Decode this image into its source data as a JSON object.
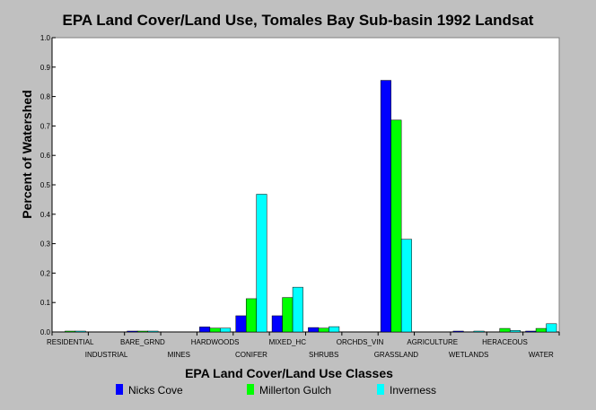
{
  "chart_data": {
    "type": "bar",
    "title": "EPA Land Cover/Land Use, Tomales Bay Sub-basin 1992 Landsat",
    "xlabel": "EPA Land Cover/Land Use Classes",
    "ylabel": "Percent of Watershed",
    "ylim": [
      0,
      1.0
    ],
    "yticks": [
      "0.0",
      "0.1",
      "0.2",
      "0.3",
      "0.4",
      "0.5",
      "0.6",
      "0.7",
      "0.8",
      "0.9",
      "1.0"
    ],
    "grid": false,
    "legend_position": "bottom",
    "categories": [
      "RESIDENTIAL",
      "INDUSTRIAL",
      "BARE_GRND",
      "MINES",
      "HARDWOODS",
      "CONIFER",
      "MIXED_HC",
      "SHRUBS",
      "ORCHDS_VIN",
      "GRASSLAND",
      "AGRICULTURE",
      "WETLANDS",
      "HERACEOUS",
      "WATER"
    ],
    "series": [
      {
        "name": "Nicks Cove",
        "color": "#0000ff",
        "values": [
          0.0,
          0.0,
          0.003,
          0.0,
          0.017,
          0.055,
          0.055,
          0.015,
          0.0,
          0.855,
          0.0,
          0.003,
          0.0,
          0.003
        ]
      },
      {
        "name": "Millerton Gulch",
        "color": "#00ff00",
        "values": [
          0.003,
          0.0,
          0.003,
          0.0,
          0.013,
          0.113,
          0.117,
          0.013,
          0.0,
          0.72,
          0.0,
          0.0,
          0.012,
          0.012
        ]
      },
      {
        "name": "Inverness",
        "color": "#00ffff",
        "values": [
          0.003,
          0.0,
          0.003,
          0.0,
          0.013,
          0.468,
          0.152,
          0.018,
          0.0,
          0.315,
          0.0,
          0.003,
          0.005,
          0.028
        ]
      }
    ]
  }
}
